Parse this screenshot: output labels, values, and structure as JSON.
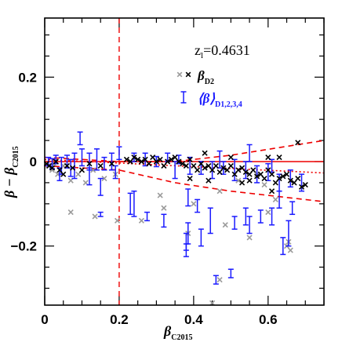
{
  "chart_data": {
    "type": "scatter",
    "title": "",
    "annotation": {
      "main": "z",
      "sub": "l",
      "value": "=0.4631"
    },
    "xlabel": {
      "main": "β",
      "sub": "C2015"
    },
    "ylabel": {
      "main": "β − β",
      "sub": "C2015"
    },
    "xlim": [
      0,
      0.75
    ],
    "ylim": [
      -0.34,
      0.34
    ],
    "xticks": [
      0,
      0.2,
      0.4,
      0.6
    ],
    "xtick_labels": [
      "0",
      "0.2",
      "0.4",
      "0.6"
    ],
    "yticks": [
      -0.2,
      0,
      0.2
    ],
    "ytick_labels": [
      "−0.2",
      "0",
      "0.2"
    ],
    "legend_position": "top-right",
    "colors": {
      "black": "#000000",
      "gray": "#9a9a9a",
      "blue": "#1a1aff",
      "red": "#ee0000"
    },
    "series": [
      {
        "name": "β_D2",
        "legend_label": {
          "main": "β",
          "sub": "D2"
        },
        "marker": "x",
        "points": [
          [
            0.005,
            -0.005
          ],
          [
            0.012,
            -0.01
          ],
          [
            0.02,
            -0.015
          ],
          [
            0.03,
            0.0
          ],
          [
            0.04,
            -0.02
          ],
          [
            0.05,
            -0.03
          ],
          [
            0.06,
            -0.01
          ],
          [
            0.075,
            -0.015
          ],
          [
            0.1,
            -0.02
          ],
          [
            0.12,
            -0.005
          ],
          [
            0.15,
            -0.01
          ],
          [
            0.18,
            -0.005
          ],
          [
            0.22,
            0.005
          ],
          [
            0.23,
            0.0
          ],
          [
            0.24,
            0.01
          ],
          [
            0.25,
            0.005
          ],
          [
            0.26,
            0.0
          ],
          [
            0.27,
            0.005
          ],
          [
            0.28,
            -0.005
          ],
          [
            0.29,
            0.01
          ],
          [
            0.3,
            0.0
          ],
          [
            0.31,
            0.005
          ],
          [
            0.32,
            -0.01
          ],
          [
            0.33,
            0.0
          ],
          [
            0.34,
            0.005
          ],
          [
            0.35,
            0.01
          ],
          [
            0.36,
            0.0
          ],
          [
            0.37,
            -0.005
          ],
          [
            0.38,
            -0.01
          ],
          [
            0.39,
            0.005
          ],
          [
            0.4,
            -0.01
          ],
          [
            0.41,
            -0.02
          ],
          [
            0.42,
            -0.005
          ],
          [
            0.43,
            -0.015
          ],
          [
            0.44,
            -0.01
          ],
          [
            0.45,
            -0.02
          ],
          [
            0.46,
            -0.01
          ],
          [
            0.47,
            -0.025
          ],
          [
            0.48,
            -0.015
          ],
          [
            0.49,
            -0.02
          ],
          [
            0.5,
            -0.01
          ],
          [
            0.51,
            -0.03
          ],
          [
            0.52,
            -0.02
          ],
          [
            0.53,
            -0.015
          ],
          [
            0.54,
            -0.025
          ],
          [
            0.55,
            -0.03
          ],
          [
            0.56,
            -0.02
          ],
          [
            0.57,
            -0.035
          ],
          [
            0.58,
            -0.03
          ],
          [
            0.59,
            -0.04
          ],
          [
            0.6,
            -0.02
          ],
          [
            0.61,
            -0.03
          ],
          [
            0.62,
            -0.05
          ],
          [
            0.63,
            -0.04
          ],
          [
            0.64,
            -0.035
          ],
          [
            0.65,
            -0.03
          ],
          [
            0.66,
            -0.045
          ],
          [
            0.67,
            -0.05
          ],
          [
            0.68,
            -0.04
          ],
          [
            0.69,
            -0.06
          ],
          [
            0.7,
            -0.055
          ],
          [
            0.39,
            -0.04
          ],
          [
            0.44,
            -0.045
          ],
          [
            0.53,
            -0.05
          ],
          [
            0.61,
            -0.07
          ],
          [
            0.55,
            -0.045
          ],
          [
            0.5,
            0.01
          ],
          [
            0.63,
            0.01
          ],
          [
            0.68,
            0.045
          ],
          [
            0.6,
            0.01
          ],
          [
            0.43,
            0.02
          ]
        ]
      },
      {
        "name": "β_D2 (outliers)",
        "marker": "x",
        "points": [
          [
            0.01,
            -0.01
          ],
          [
            0.02,
            -0.02
          ],
          [
            0.025,
            -0.005
          ],
          [
            0.035,
            -0.03
          ],
          [
            0.05,
            -0.01
          ],
          [
            0.07,
            -0.045
          ],
          [
            0.09,
            -0.03
          ],
          [
            0.11,
            -0.05
          ],
          [
            0.13,
            -0.02
          ],
          [
            0.16,
            -0.04
          ],
          [
            0.19,
            -0.03
          ],
          [
            0.07,
            -0.12
          ],
          [
            0.135,
            -0.13
          ],
          [
            0.195,
            -0.14
          ],
          [
            0.26,
            -0.14
          ],
          [
            0.31,
            -0.08
          ],
          [
            0.32,
            -0.11
          ],
          [
            0.385,
            -0.17
          ],
          [
            0.4,
            -0.1
          ],
          [
            0.45,
            -0.335
          ],
          [
            0.47,
            -0.28
          ],
          [
            0.55,
            -0.18
          ],
          [
            0.65,
            -0.2
          ],
          [
            0.66,
            -0.21
          ],
          [
            0.57,
            -0.03
          ],
          [
            0.485,
            -0.15
          ],
          [
            0.6,
            -0.12
          ],
          [
            0.655,
            -0.19
          ],
          [
            0.62,
            -0.09
          ],
          [
            0.47,
            -0.07
          ],
          [
            0.52,
            -0.045
          ],
          [
            0.59,
            -0.055
          ]
        ]
      },
      {
        "name": "⟨β⟩_D1,2,3,4",
        "legend_label": {
          "main": "⟨β⟩",
          "sub": "D1,2,3,4"
        },
        "marker": "errorbar",
        "points": [
          [
            0.01,
            0.0,
            0.01
          ],
          [
            0.02,
            -0.005,
            0.012
          ],
          [
            0.03,
            0.005,
            0.01
          ],
          [
            0.045,
            -0.01,
            0.02
          ],
          [
            0.06,
            0.0,
            0.015
          ],
          [
            0.08,
            -0.01,
            0.03
          ],
          [
            0.095,
            0.055,
            0.015
          ],
          [
            0.1,
            0.01,
            0.02
          ],
          [
            0.12,
            0.0,
            0.02
          ],
          [
            0.14,
            0.005,
            0.025
          ],
          [
            0.16,
            -0.005,
            0.015
          ],
          [
            0.18,
            0.0,
            0.02
          ],
          [
            0.24,
            0.01,
            0.01
          ],
          [
            0.27,
            0.005,
            0.015
          ],
          [
            0.3,
            0.0,
            0.012
          ],
          [
            0.33,
            0.01,
            0.01
          ],
          [
            0.36,
            0.005,
            0.01
          ],
          [
            0.39,
            -0.01,
            0.02
          ],
          [
            0.42,
            -0.015,
            0.015
          ],
          [
            0.45,
            -0.02,
            0.02
          ],
          [
            0.48,
            -0.015,
            0.015
          ],
          [
            0.51,
            -0.02,
            0.025
          ],
          [
            0.54,
            -0.02,
            0.02
          ],
          [
            0.57,
            -0.03,
            0.02
          ],
          [
            0.6,
            -0.025,
            0.02
          ],
          [
            0.63,
            -0.05,
            0.02
          ],
          [
            0.66,
            -0.04,
            0.02
          ],
          [
            0.69,
            -0.05,
            0.02
          ],
          [
            0.2,
            0.02,
            0.015
          ],
          [
            0.35,
            -0.02,
            0.02
          ],
          [
            0.47,
            0.005,
            0.02
          ],
          [
            0.55,
            0.02,
            0.02
          ],
          [
            0.61,
            -0.01,
            0.015
          ],
          [
            0.04,
            -0.03,
            0.015
          ],
          [
            0.07,
            -0.015,
            0.02
          ],
          [
            0.12,
            -0.035,
            0.02
          ],
          [
            0.15,
            -0.06,
            0.02
          ],
          [
            0.19,
            -0.025,
            0.015
          ],
          [
            0.15,
            -0.125,
            0.005
          ],
          [
            0.24,
            -0.1,
            0.03
          ],
          [
            0.275,
            -0.13,
            0.01
          ],
          [
            0.32,
            -0.14,
            0.015
          ],
          [
            0.385,
            -0.085,
            0.02
          ],
          [
            0.385,
            -0.17,
            0.025
          ],
          [
            0.38,
            -0.19,
            0.02
          ],
          [
            0.41,
            -0.105,
            0.015
          ],
          [
            0.46,
            -0.28,
            0.01
          ],
          [
            0.5,
            -0.265,
            0.01
          ],
          [
            0.51,
            -0.145,
            0.015
          ],
          [
            0.54,
            -0.13,
            0.02
          ],
          [
            0.55,
            -0.15,
            0.02
          ],
          [
            0.58,
            -0.13,
            0.015
          ],
          [
            0.61,
            -0.13,
            0.02
          ],
          [
            0.63,
            -0.09,
            0.02
          ],
          [
            0.655,
            -0.17,
            0.03
          ],
          [
            0.665,
            -0.11,
            0.015
          ],
          [
            0.64,
            -0.2,
            0.02
          ],
          [
            0.38,
            -0.21,
            0.015
          ],
          [
            0.445,
            -0.14,
            0.03
          ],
          [
            0.23,
            -0.1,
            0.025
          ],
          [
            0.42,
            -0.18,
            0.02
          ]
        ]
      }
    ],
    "reference_lines": [
      {
        "name": "zero",
        "style": "solid",
        "color": "red",
        "points": [
          [
            0,
            0
          ],
          [
            0.75,
            0
          ]
        ]
      },
      {
        "name": "fit",
        "style": "dotted",
        "color": "red",
        "points": [
          [
            0,
            0.005
          ],
          [
            0.75,
            -0.027
          ]
        ]
      },
      {
        "name": "upper-envelope",
        "style": "dashed",
        "color": "red",
        "points": [
          [
            0,
            0.01
          ],
          [
            0.2,
            0.0
          ],
          [
            0.35,
            0.0
          ],
          [
            0.5,
            0.015
          ],
          [
            0.75,
            0.05
          ]
        ]
      },
      {
        "name": "lower-envelope",
        "style": "dashed",
        "color": "red",
        "points": [
          [
            0,
            -0.01
          ],
          [
            0.2,
            -0.02
          ],
          [
            0.35,
            -0.05
          ],
          [
            0.5,
            -0.07
          ],
          [
            0.75,
            -0.095
          ]
        ]
      },
      {
        "name": "threshold",
        "style": "dashed",
        "color": "red",
        "orientation": "vertical",
        "x": 0.2
      }
    ]
  }
}
